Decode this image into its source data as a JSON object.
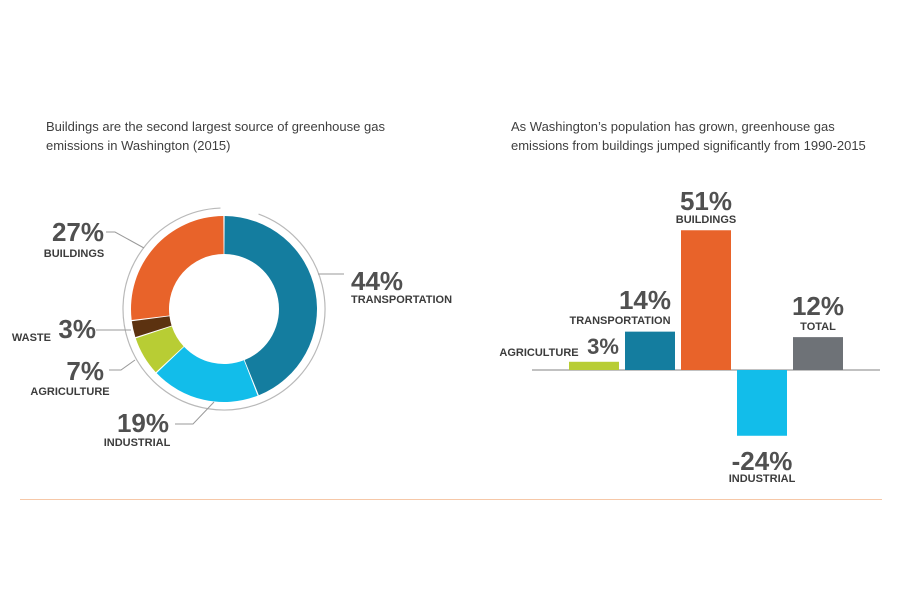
{
  "titles": {
    "left": "Buildings are the second largest source of greenhouse gas\nemissions in Washington (2015)",
    "right": "As Washington’s population has grown, greenhouse gas\nemissions from buildings jumped significantly from 1990-2015"
  },
  "colors": {
    "transportation": "#147d9f",
    "industrial": "#12bdea",
    "agriculture": "#b8cd34",
    "waste": "#5c3210",
    "buildings": "#e8632a",
    "total": "#6e7277",
    "divider": "#f6c8a8"
  },
  "chart_data": [
    {
      "type": "pie",
      "style": "donut",
      "title": "Buildings are the second largest source of greenhouse gas emissions in Washington (2015)",
      "slices": [
        {
          "name": "TRANSPORTATION",
          "value": 44,
          "label": "44%"
        },
        {
          "name": "INDUSTRIAL",
          "value": 19,
          "label": "19%"
        },
        {
          "name": "AGRICULTURE",
          "value": 7,
          "label": "7%"
        },
        {
          "name": "WASTE",
          "value": 3,
          "label": "3%"
        },
        {
          "name": "BUILDINGS",
          "value": 27,
          "label": "27%"
        }
      ]
    },
    {
      "type": "bar",
      "title": "As Washington’s population has grown, greenhouse gas emissions from buildings jumped significantly from 1990-2015",
      "categories": [
        "AGRICULTURE",
        "TRANSPORTATION",
        "BUILDINGS",
        "INDUSTRIAL",
        "TOTAL"
      ],
      "values": [
        3,
        14,
        51,
        -24,
        12
      ],
      "labels": [
        "3%",
        "14%",
        "51%",
        "-24%",
        "12%"
      ],
      "unit": "%"
    }
  ]
}
